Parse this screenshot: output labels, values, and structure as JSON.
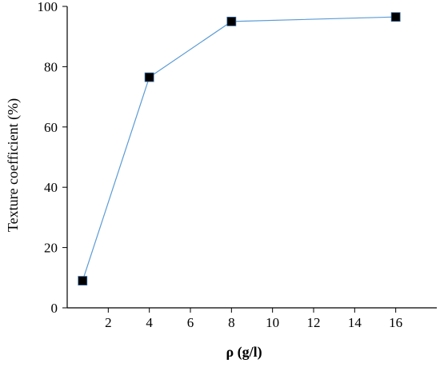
{
  "chart_data": {
    "type": "line",
    "title": "",
    "xlabel": "ρ (g/l)",
    "ylabel": "Texture coefficient (%)",
    "x_ticks": [
      "2",
      "4",
      "6",
      "8",
      "10",
      "12",
      "14",
      "16"
    ],
    "y_ticks": [
      "0",
      "20",
      "40",
      "60",
      "80",
      "100"
    ],
    "xlim": [
      0,
      18
    ],
    "ylim": [
      0,
      100
    ],
    "grid": false,
    "legend": "none",
    "series": [
      {
        "marker": "filled-square",
        "line_color": "#5b9bd5",
        "marker_color": "#000000",
        "points": [
          {
            "x": 0.75,
            "y": 9
          },
          {
            "x": 4,
            "y": 76.5
          },
          {
            "x": 8,
            "y": 95
          },
          {
            "x": 16,
            "y": 96.5
          }
        ]
      }
    ]
  }
}
